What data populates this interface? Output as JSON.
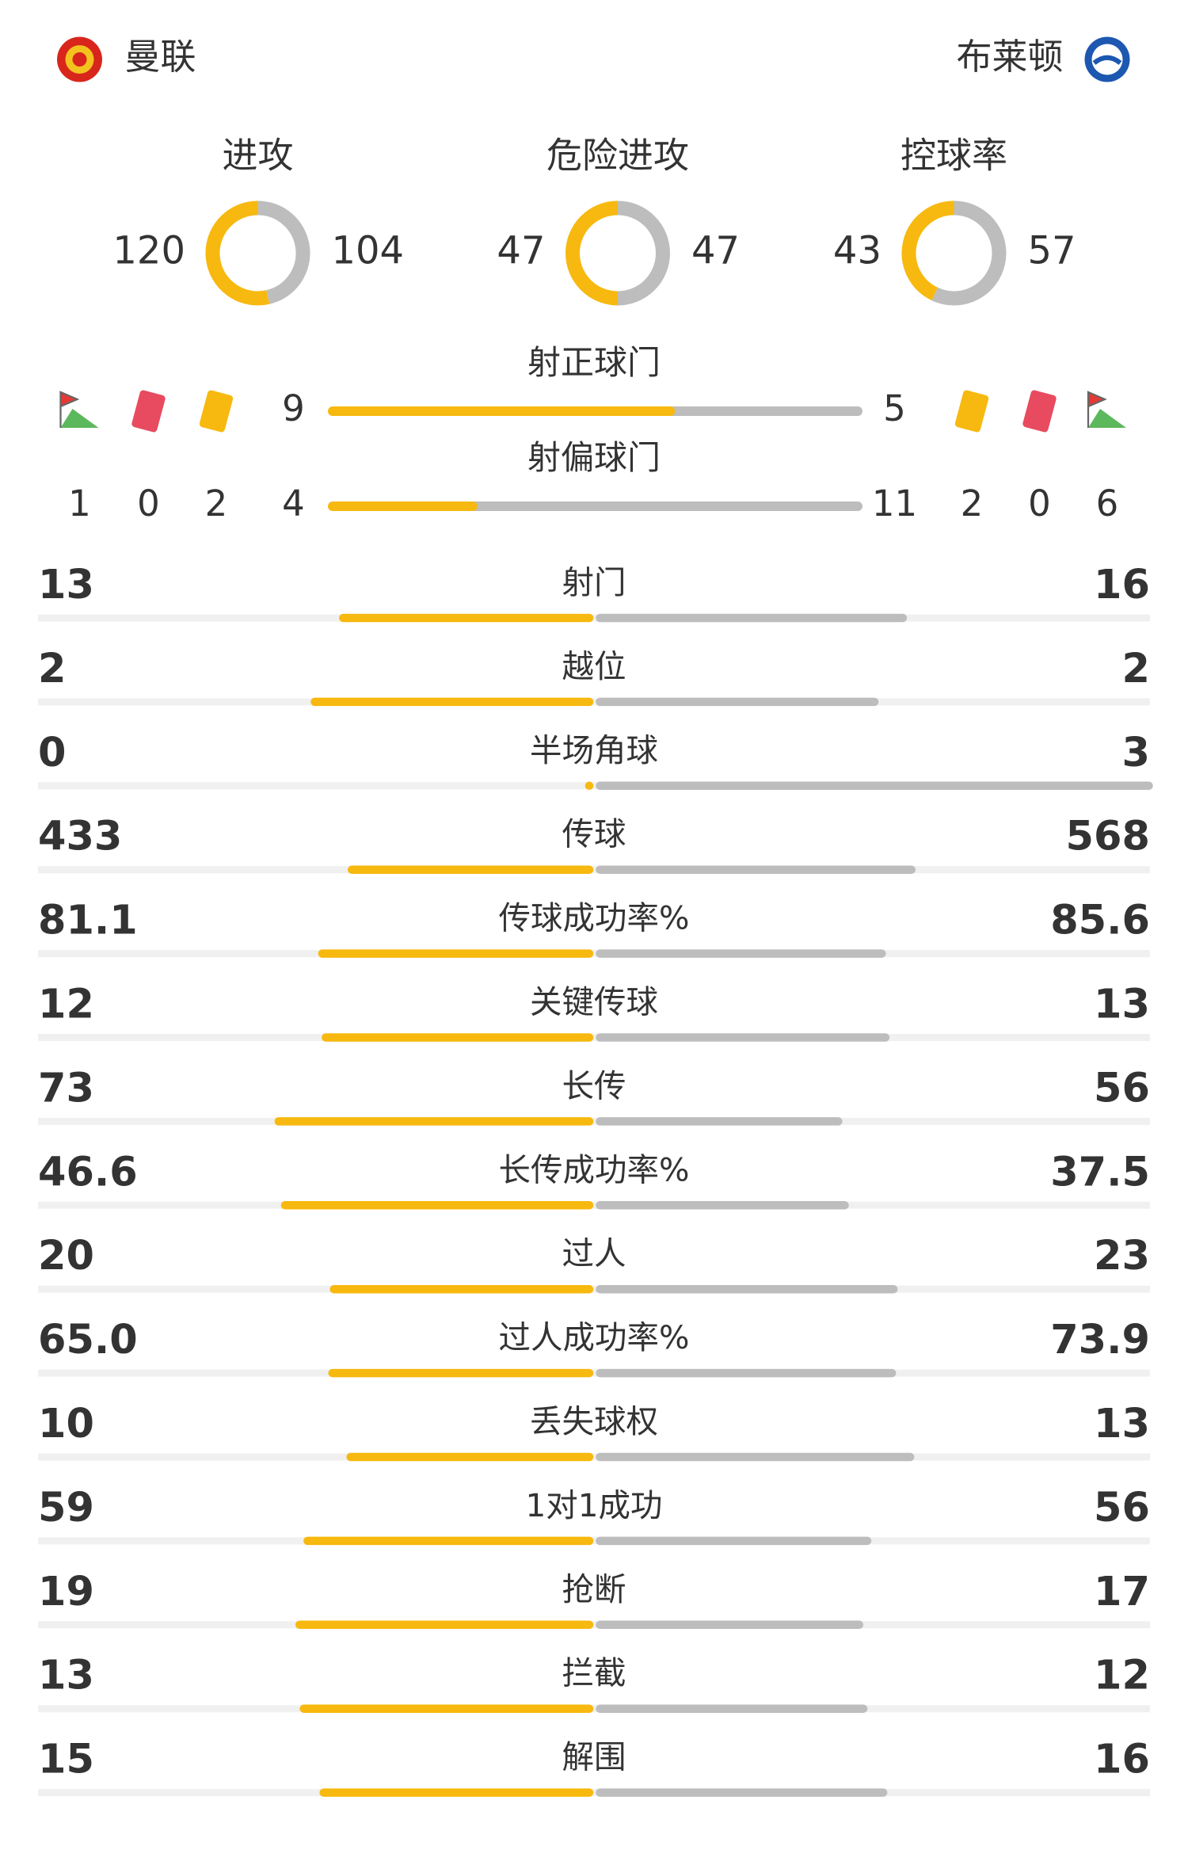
{
  "header": {
    "home": "曼联",
    "away": "布莱顿"
  },
  "rings": [
    {
      "label": "进攻",
      "home": 120,
      "away": 104
    },
    {
      "label": "危险进攻",
      "home": 47,
      "away": 47
    },
    {
      "label": "控球率",
      "home": 43,
      "away": 57
    }
  ],
  "shots": [
    {
      "label": "射正球门",
      "home": 9,
      "away": 5
    },
    {
      "label": "射偏球门",
      "home": 4,
      "away": 11
    }
  ],
  "cards": {
    "home": {
      "corners": 1,
      "red": 0,
      "yellow": 2
    },
    "away": {
      "yellow": 2,
      "red": 0,
      "corners": 6
    }
  },
  "stats": [
    {
      "label": "射门",
      "home": 13,
      "away": 16
    },
    {
      "label": "越位",
      "home": 2,
      "away": 2
    },
    {
      "label": "半场角球",
      "home": 0,
      "away": 3
    },
    {
      "label": "传球",
      "home": 433,
      "away": 568
    },
    {
      "label": "传球成功率%",
      "home": 81.1,
      "away": 85.6
    },
    {
      "label": "关键传球",
      "home": 12,
      "away": 13
    },
    {
      "label": "长传",
      "home": 73,
      "away": 56
    },
    {
      "label": "长传成功率%",
      "home": 46.6,
      "away": 37.5
    },
    {
      "label": "过人",
      "home": 20,
      "away": 23
    },
    {
      "label": "过人成功率%",
      "home": 65,
      "home_label": "65.0",
      "away": 73.9
    },
    {
      "label": "丢失球权",
      "home": 10,
      "away": 13
    },
    {
      "label": "1对1成功",
      "home": 59,
      "away": 56
    },
    {
      "label": "抢断",
      "home": 19,
      "away": 17
    },
    {
      "label": "拦截",
      "home": 13,
      "away": 12
    },
    {
      "label": "解围",
      "home": 15,
      "away": 16
    }
  ]
}
